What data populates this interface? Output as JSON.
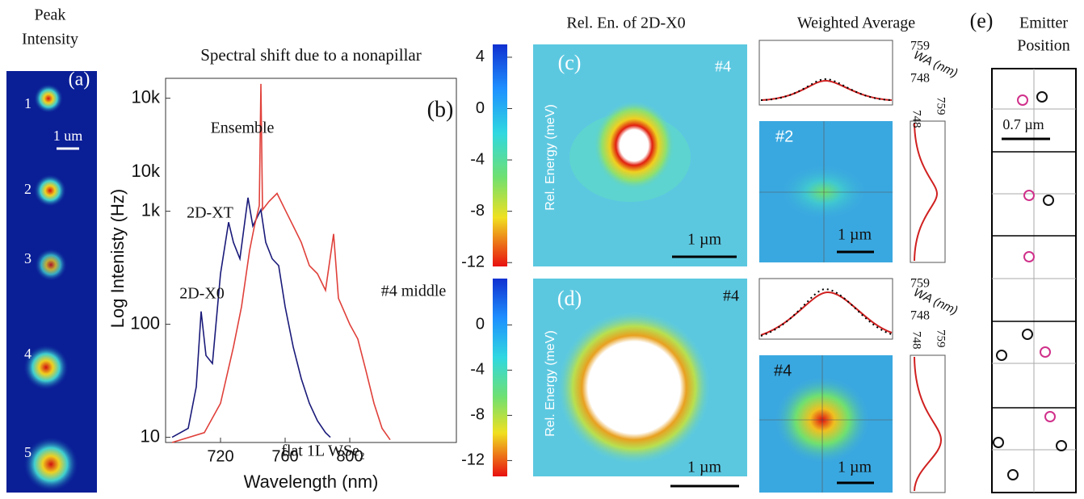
{
  "panel_a": {
    "title_line1": "Peak",
    "title_line2": "Intensity",
    "label": "(a)",
    "scale": "1 um",
    "emitters": [
      "1",
      "2",
      "3",
      "4",
      "5"
    ]
  },
  "chart_data": {
    "type": "line",
    "title": "Spectral shift due to a nonapillar",
    "panel_label": "(b)",
    "x_label": "Wavelength (nm)",
    "y_label": "Log Intenisty (Hz)",
    "xlim": [
      686,
      866
    ],
    "xticks": [
      720,
      760,
      800
    ],
    "ylim": [
      9,
      15000
    ],
    "log_y": true,
    "yticks": [
      10,
      100,
      {
        "value": 1000,
        "label": "1k"
      },
      {
        "value": 10000,
        "label": "10k"
      }
    ],
    "ytick_extra_label": "10k",
    "annotations": [
      "Ensemble",
      "2D-XT",
      "2D-X0"
    ],
    "series": [
      {
        "name": "flat 1L WSe₂",
        "color": "#1a1a7a",
        "x": [
          690,
          700,
          705,
          708,
          711,
          715,
          720,
          725,
          728,
          732,
          737,
          740,
          745,
          748,
          752,
          756,
          760,
          765,
          770,
          775,
          780,
          785,
          788
        ],
        "values": [
          10,
          12,
          28,
          130,
          53,
          45,
          280,
          800,
          530,
          380,
          1320,
          740,
          1030,
          530,
          380,
          330,
          143,
          63,
          33,
          20,
          14,
          11,
          10
        ]
      },
      {
        "name": "#4 middle",
        "color": "#e0403a",
        "x": [
          690,
          710,
          720,
          728,
          733,
          738,
          741,
          744,
          745,
          746,
          750,
          755,
          760,
          765,
          770,
          775,
          780,
          785,
          790,
          793,
          800,
          805,
          810,
          815,
          820,
          825
        ],
        "values": [
          9,
          11,
          20,
          63,
          143,
          450,
          740,
          1120,
          13400,
          1030,
          1220,
          1440,
          1030,
          740,
          530,
          330,
          280,
          200,
          630,
          170,
          100,
          74,
          39,
          20,
          12,
          9.5
        ]
      }
    ]
  },
  "panel_c": {
    "title": "Rel. En. of 2D-X0",
    "label": "(c)",
    "id": "#4",
    "scale": "1 µm",
    "colorbar_label": "Rel. Energy (meV)",
    "colorbar_lim": [
      -12.3,
      5
    ],
    "colorbar_ticks": [
      4,
      0,
      -4,
      -8,
      -12
    ]
  },
  "panel_d": {
    "label": "(d)",
    "id": "#4",
    "scale": "1 µm",
    "colorbar_label": "Rel. Energy (meV)",
    "colorbar_lim": [
      -13.4,
      4.1
    ],
    "colorbar_ticks": [
      0,
      -4,
      -8,
      -12
    ]
  },
  "weighted_average": {
    "title": "Weighted Average",
    "axis_label": "WA (nm)",
    "tick_high": "759",
    "tick_low": "748",
    "inset_top": "#2",
    "inset_bottom": "#4",
    "scale": "1 µm"
  },
  "panel_e": {
    "label": "(e)",
    "title_line1": "Emitter",
    "title_line2": "Position",
    "scale": "0.7 µm"
  }
}
